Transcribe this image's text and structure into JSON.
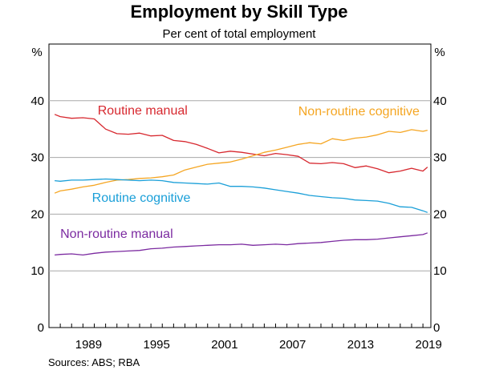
{
  "chart_data": {
    "type": "line",
    "title": "Employment by Skill Type",
    "subtitle": "Per cent of total employment",
    "y_unit_left": "%",
    "y_unit_right": "%",
    "ylim": [
      0,
      50
    ],
    "y_ticks": [
      0,
      10,
      20,
      30,
      40
    ],
    "xlim": [
      1986,
      2019.7
    ],
    "x_ticks": [
      1989,
      1995,
      2001,
      2007,
      2013,
      2019
    ],
    "grid": true,
    "source": "Sources:   ABS; RBA",
    "series": [
      {
        "name": "Routine manual",
        "color": "#d7282f",
        "x": [
          1986.5,
          1987,
          1988,
          1989,
          1990,
          1991,
          1992,
          1993,
          1994,
          1995,
          1996,
          1997,
          1998,
          1999,
          2000,
          2001,
          2002,
          2003,
          2004,
          2005,
          2006,
          2007,
          2008,
          2009,
          2010,
          2011,
          2012,
          2013,
          2014,
          2015,
          2016,
          2017,
          2018,
          2019,
          2019.4
        ],
        "y": [
          37.6,
          37.2,
          36.9,
          37.0,
          36.8,
          35.0,
          34.2,
          34.1,
          34.3,
          33.8,
          33.9,
          33.0,
          32.8,
          32.3,
          31.6,
          30.8,
          31.1,
          30.9,
          30.6,
          30.3,
          30.7,
          30.5,
          30.2,
          29.0,
          28.9,
          29.1,
          28.9,
          28.2,
          28.5,
          28.0,
          27.3,
          27.6,
          28.1,
          27.6,
          28.3
        ]
      },
      {
        "name": "Non-routine cognitive",
        "color": "#f5a623",
        "x": [
          1986.5,
          1987,
          1988,
          1989,
          1990,
          1991,
          1992,
          1993,
          1994,
          1995,
          1996,
          1997,
          1998,
          1999,
          2000,
          2001,
          2002,
          2003,
          2004,
          2005,
          2006,
          2007,
          2008,
          2009,
          2010,
          2011,
          2012,
          2013,
          2014,
          2015,
          2016,
          2017,
          2018,
          2019,
          2019.4
        ],
        "y": [
          23.7,
          24.1,
          24.4,
          24.8,
          25.1,
          25.6,
          26.0,
          26.1,
          26.3,
          26.4,
          26.6,
          26.9,
          27.8,
          28.3,
          28.8,
          29.0,
          29.2,
          29.7,
          30.3,
          30.9,
          31.3,
          31.8,
          32.3,
          32.6,
          32.4,
          33.3,
          33.0,
          33.4,
          33.6,
          34.0,
          34.6,
          34.4,
          34.9,
          34.6,
          34.8
        ]
      },
      {
        "name": "Routine cognitive",
        "color": "#1a9fd8",
        "x": [
          1986.5,
          1987,
          1988,
          1989,
          1990,
          1991,
          1992,
          1993,
          1994,
          1995,
          1996,
          1997,
          1998,
          1999,
          2000,
          2001,
          2002,
          2003,
          2004,
          2005,
          2006,
          2007,
          2008,
          2009,
          2010,
          2011,
          2012,
          2013,
          2014,
          2015,
          2016,
          2017,
          2018,
          2019,
          2019.4
        ],
        "y": [
          25.9,
          25.8,
          26.0,
          26.0,
          26.1,
          26.2,
          26.1,
          26.0,
          25.9,
          26.0,
          25.9,
          25.6,
          25.5,
          25.4,
          25.3,
          25.5,
          24.9,
          24.9,
          24.8,
          24.6,
          24.3,
          24.0,
          23.7,
          23.3,
          23.1,
          22.9,
          22.8,
          22.5,
          22.4,
          22.3,
          21.9,
          21.3,
          21.2,
          20.6,
          20.3
        ]
      },
      {
        "name": "Non-routine manual",
        "color": "#7b2aa0",
        "x": [
          1986.5,
          1987,
          1988,
          1989,
          1990,
          1991,
          1992,
          1993,
          1994,
          1995,
          1996,
          1997,
          1998,
          1999,
          2000,
          2001,
          2002,
          2003,
          2004,
          2005,
          2006,
          2007,
          2008,
          2009,
          2010,
          2011,
          2012,
          2013,
          2014,
          2015,
          2016,
          2017,
          2018,
          2019,
          2019.4
        ],
        "y": [
          12.8,
          12.9,
          13.0,
          12.8,
          13.1,
          13.3,
          13.4,
          13.5,
          13.6,
          13.9,
          14.0,
          14.2,
          14.3,
          14.4,
          14.5,
          14.6,
          14.6,
          14.7,
          14.5,
          14.6,
          14.7,
          14.6,
          14.8,
          14.9,
          15.0,
          15.2,
          15.4,
          15.5,
          15.5,
          15.6,
          15.8,
          16.0,
          16.2,
          16.4,
          16.7
        ]
      }
    ],
    "labels": [
      {
        "text": "Routine manual",
        "color": "#d7282f",
        "x": 1990.3,
        "y": 37.6
      },
      {
        "text": "Non-routine cognitive",
        "color": "#f5a623",
        "x": 2008.0,
        "y": 37.4
      },
      {
        "text": "Routine cognitive",
        "color": "#1a9fd8",
        "x": 1989.8,
        "y": 22.2
      },
      {
        "text": "Non-routine manual",
        "color": "#7b2aa0",
        "x": 1987.0,
        "y": 15.8
      }
    ]
  }
}
